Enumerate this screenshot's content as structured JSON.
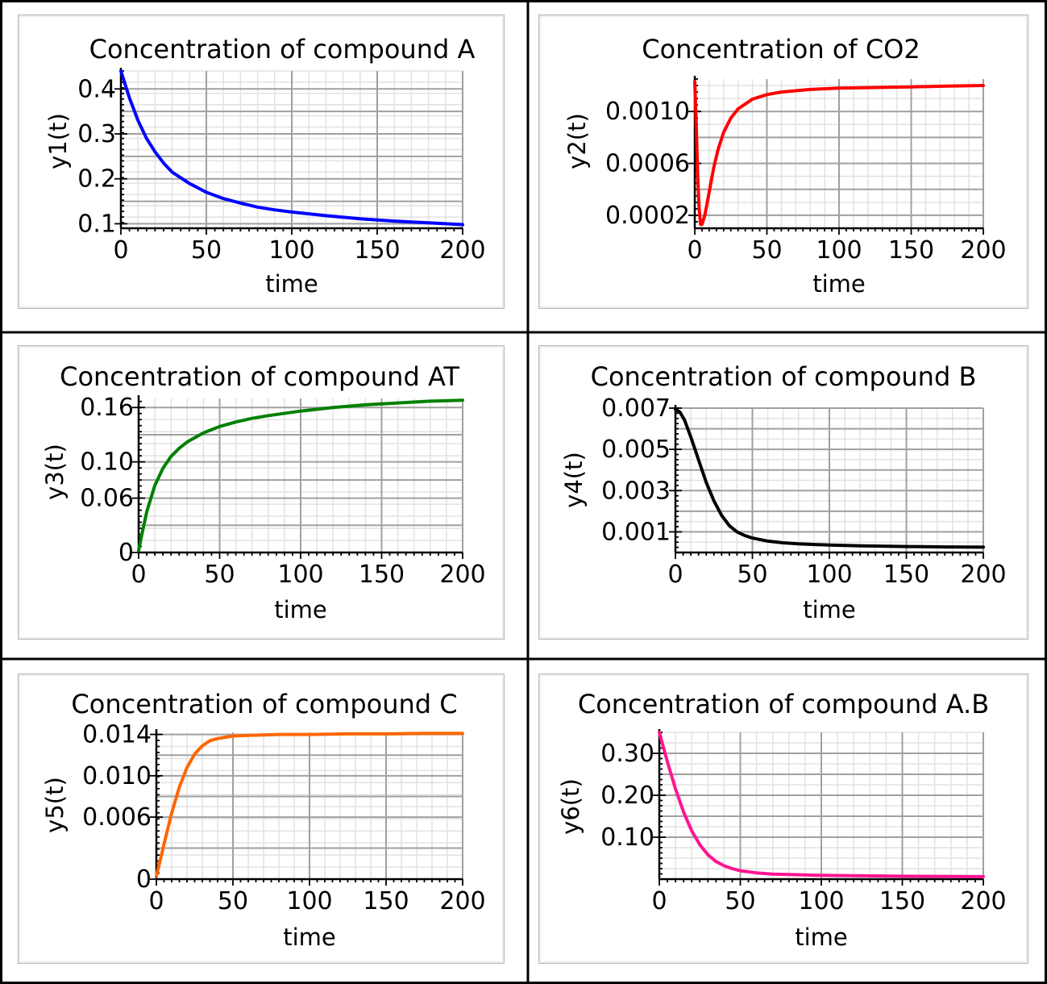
{
  "chart_data": [
    {
      "type": "line",
      "title": "Concentration of compound A",
      "xlabel": "time",
      "ylabel": "y1(t)",
      "xlim": [
        0,
        200
      ],
      "ylim": [
        0.09,
        0.44
      ],
      "xticks": [
        0,
        50,
        100,
        150,
        200
      ],
      "yticks": [
        0.1,
        0.2,
        0.3,
        0.4
      ],
      "ytick_labels": [
        "0.1",
        "0.2",
        "0.3",
        "0.4"
      ],
      "grid": true,
      "color": "#0000ff",
      "series": [
        {
          "x": [
            0,
            5,
            10,
            15,
            20,
            25,
            30,
            40,
            50,
            60,
            70,
            80,
            90,
            100,
            120,
            140,
            160,
            180,
            200
          ],
          "y": [
            0.44,
            0.38,
            0.33,
            0.29,
            0.26,
            0.235,
            0.215,
            0.19,
            0.17,
            0.156,
            0.146,
            0.137,
            0.131,
            0.126,
            0.118,
            0.111,
            0.106,
            0.102,
            0.098
          ]
        }
      ]
    },
    {
      "type": "line",
      "title": "Concentration of CO2",
      "xlabel": "time",
      "ylabel": "y2(t)",
      "xlim": [
        0,
        200
      ],
      "ylim": [
        0.0001,
        0.00125
      ],
      "xticks": [
        0,
        50,
        100,
        150,
        200
      ],
      "yticks": [
        0.0002,
        0.0006,
        0.001
      ],
      "ytick_labels": [
        "0.0002",
        "0.0006",
        "0.0010"
      ],
      "grid": true,
      "color": "#ff0000",
      "series": [
        {
          "x": [
            0,
            1,
            2,
            3,
            4,
            5,
            7,
            10,
            13,
            16,
            20,
            25,
            30,
            40,
            50,
            60,
            80,
            100,
            125,
            150,
            175,
            200
          ],
          "y": [
            0.00123,
            0.0009,
            0.0005,
            0.00025,
            0.00013,
            0.00013,
            0.0002,
            0.00038,
            0.00056,
            0.0007,
            0.00084,
            0.00095,
            0.00102,
            0.001095,
            0.00113,
            0.00115,
            0.00117,
            0.00118,
            0.001185,
            0.00119,
            0.001195,
            0.0012
          ]
        }
      ]
    },
    {
      "type": "line",
      "title": "Concentration of compound AT",
      "xlabel": "time",
      "ylabel": "y3(t)",
      "xlim": [
        0,
        200
      ],
      "ylim": [
        0,
        0.17
      ],
      "xticks": [
        0,
        50,
        100,
        150,
        200
      ],
      "yticks": [
        0,
        0.06,
        0.1,
        0.16
      ],
      "ytick_labels": [
        "0",
        "0.06",
        "0.10",
        "0.16"
      ],
      "grid": true,
      "color": "#008000",
      "series": [
        {
          "x": [
            0,
            2,
            5,
            10,
            15,
            20,
            25,
            30,
            40,
            50,
            60,
            70,
            80,
            100,
            120,
            140,
            160,
            180,
            200
          ],
          "y": [
            0.002,
            0.02,
            0.045,
            0.074,
            0.093,
            0.106,
            0.115,
            0.122,
            0.132,
            0.139,
            0.144,
            0.148,
            0.151,
            0.156,
            0.16,
            0.163,
            0.165,
            0.167,
            0.168
          ]
        }
      ]
    },
    {
      "type": "line",
      "title": "Concentration of compound B",
      "xlabel": "time",
      "ylabel": "y4(t)",
      "xlim": [
        0,
        200
      ],
      "ylim": [
        0,
        0.007
      ],
      "xticks": [
        0,
        50,
        100,
        150,
        200
      ],
      "yticks": [
        0.001,
        0.003,
        0.005,
        0.007
      ],
      "ytick_labels": [
        "0.001",
        "0.003",
        "0.005",
        "0.007"
      ],
      "grid": true,
      "color": "#000000",
      "series": [
        {
          "x": [
            0,
            3,
            6,
            10,
            15,
            20,
            25,
            30,
            35,
            40,
            45,
            50,
            60,
            70,
            80,
            100,
            120,
            150,
            175,
            200
          ],
          "y": [
            0.00695,
            0.0068,
            0.0064,
            0.0056,
            0.0045,
            0.0034,
            0.0025,
            0.0018,
            0.0013,
            0.001,
            0.00082,
            0.0007,
            0.00055,
            0.00047,
            0.00042,
            0.00036,
            0.00032,
            0.00029,
            0.00027,
            0.00026
          ]
        }
      ]
    },
    {
      "type": "line",
      "title": "Concentration of compound C",
      "xlabel": "time",
      "ylabel": "y5(t)",
      "xlim": [
        0,
        200
      ],
      "ylim": [
        0,
        0.0142
      ],
      "xticks": [
        0,
        50,
        100,
        150,
        200
      ],
      "yticks": [
        0,
        0.006,
        0.01,
        0.014
      ],
      "ytick_labels": [
        "0",
        "0.006",
        "0.010",
        "0.014"
      ],
      "grid": true,
      "color": "#ff6600",
      "series": [
        {
          "x": [
            0,
            2,
            5,
            10,
            15,
            20,
            25,
            30,
            35,
            40,
            50,
            60,
            70,
            80,
            100,
            125,
            150,
            175,
            200
          ],
          "y": [
            0.0003,
            0.0015,
            0.0034,
            0.0064,
            0.0089,
            0.0108,
            0.0121,
            0.0129,
            0.0134,
            0.0136,
            0.01385,
            0.0139,
            0.01395,
            0.014,
            0.014,
            0.01405,
            0.01405,
            0.0141,
            0.0141
          ]
        }
      ]
    },
    {
      "type": "line",
      "title": "Concentration of compound A.B",
      "xlabel": "time",
      "ylabel": "y6(t)",
      "xlim": [
        0,
        200
      ],
      "ylim": [
        0,
        0.35
      ],
      "xticks": [
        0,
        50,
        100,
        150,
        200
      ],
      "yticks": [
        0.1,
        0.2,
        0.3
      ],
      "ytick_labels": [
        "0.10",
        "0.20",
        "0.30"
      ],
      "grid": true,
      "color": "#ff1493",
      "series": [
        {
          "x": [
            0,
            5,
            10,
            15,
            20,
            25,
            30,
            35,
            40,
            45,
            50,
            60,
            70,
            80,
            100,
            120,
            150,
            175,
            200
          ],
          "y": [
            0.35,
            0.28,
            0.215,
            0.16,
            0.115,
            0.082,
            0.058,
            0.042,
            0.032,
            0.025,
            0.02,
            0.015,
            0.012,
            0.011,
            0.009,
            0.008,
            0.007,
            0.0065,
            0.006
          ]
        }
      ]
    }
  ]
}
